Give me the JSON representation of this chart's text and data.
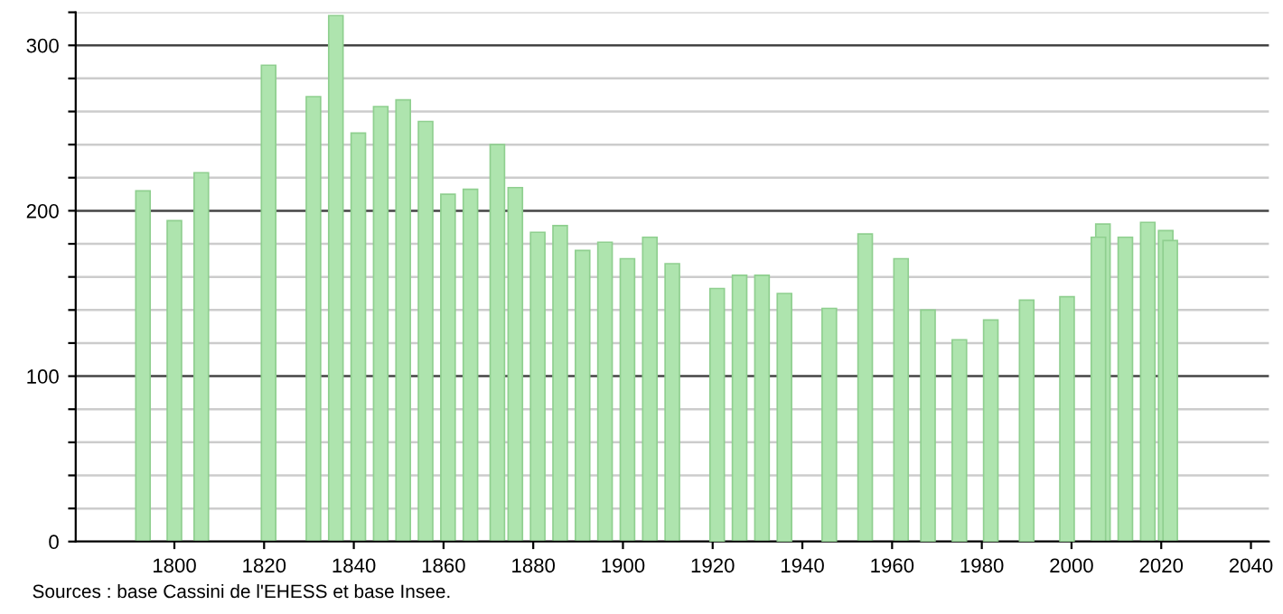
{
  "chart_data": {
    "type": "bar",
    "x": [
      1793,
      1800,
      1806,
      1821,
      1831,
      1836,
      1841,
      1846,
      1851,
      1856,
      1861,
      1866,
      1872,
      1876,
      1881,
      1886,
      1891,
      1896,
      1901,
      1906,
      1911,
      1921,
      1926,
      1931,
      1936,
      1946,
      1954,
      1962,
      1968,
      1975,
      1982,
      1990,
      1999,
      2006,
      2007,
      2012,
      2017,
      2021,
      2022
    ],
    "values": [
      212,
      194,
      223,
      288,
      269,
      318,
      247,
      263,
      267,
      254,
      210,
      213,
      240,
      214,
      187,
      191,
      176,
      181,
      171,
      184,
      168,
      153,
      161,
      161,
      150,
      141,
      186,
      171,
      140,
      122,
      134,
      146,
      148,
      184,
      192,
      184,
      193,
      188,
      182
    ],
    "color": "#aee4ae",
    "xlim": [
      1778,
      2044
    ],
    "xticks": [
      1800,
      1820,
      1840,
      1860,
      1880,
      1900,
      1920,
      1940,
      1960,
      1980,
      2000,
      2020,
      2040
    ],
    "ylim": [
      0,
      320
    ],
    "yticks": [
      0,
      {
        "value": 20,
        "label": null
      },
      {
        "value": 40,
        "label": null
      },
      {
        "value": 60,
        "label": null
      },
      {
        "value": 80,
        "label": null
      },
      100,
      {
        "value": 120,
        "label": null
      },
      {
        "value": 140,
        "label": null
      },
      {
        "value": 160,
        "label": null
      },
      {
        "value": 180,
        "label": null
      },
      200,
      {
        "value": 220,
        "label": null
      },
      {
        "value": 240,
        "label": null
      },
      {
        "value": 260,
        "label": null
      },
      {
        "value": 280,
        "label": null
      },
      300,
      {
        "value": 320,
        "label": null
      }
    ],
    "grid": "y",
    "annotations": [
      "Sources : base Cassini de l'EHESS et base Insee."
    ]
  }
}
